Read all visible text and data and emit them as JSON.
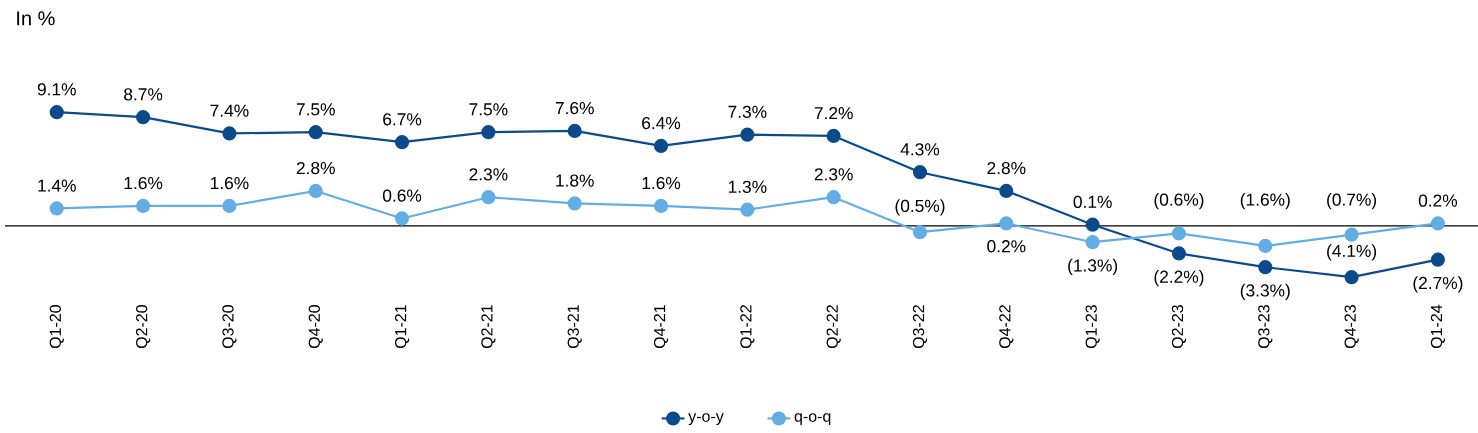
{
  "chart_data": {
    "type": "line",
    "title": "In %",
    "categories": [
      "Q1-20",
      "Q2-20",
      "Q3-20",
      "Q4-20",
      "Q1-21",
      "Q2-21",
      "Q3-21",
      "Q4-21",
      "Q1-22",
      "Q2-22",
      "Q3-22",
      "Q4-22",
      "Q1-23",
      "Q2-23",
      "Q3-23",
      "Q4-23",
      "Q1-24"
    ],
    "series": [
      {
        "name": "y-o-y",
        "color": "#0b4a8b",
        "values": [
          9.1,
          8.7,
          7.4,
          7.5,
          6.7,
          7.5,
          7.6,
          6.4,
          7.3,
          7.2,
          4.3,
          2.8,
          0.1,
          -2.2,
          -3.3,
          -4.1,
          -2.7
        ],
        "value_labels": [
          "9.1%",
          "8.7%",
          "7.4%",
          "7.5%",
          "6.7%",
          "7.5%",
          "7.6%",
          "6.4%",
          "7.3%",
          "7.2%",
          "4.3%",
          "2.8%",
          "0.1%",
          "(2.2%)",
          "(3.3%)",
          "(4.1%)",
          "(2.7%)"
        ]
      },
      {
        "name": "q-o-q",
        "color": "#62ade4",
        "values": [
          1.4,
          1.6,
          1.6,
          2.8,
          0.6,
          2.3,
          1.8,
          1.6,
          1.3,
          2.3,
          -0.5,
          0.2,
          -1.3,
          -0.6,
          -1.6,
          -0.7,
          0.2
        ],
        "value_labels": [
          "1.4%",
          "1.6%",
          "1.6%",
          "2.8%",
          "0.6%",
          "2.3%",
          "1.8%",
          "1.6%",
          "1.3%",
          "2.3%",
          "(0.5%)",
          "0.2%",
          "(1.3%)",
          "(0.6%)",
          "(1.6%)",
          "(0.7%)",
          "0.2%"
        ]
      }
    ],
    "ref_lines": [
      {
        "axis": "y",
        "value": 0,
        "color": "#000000"
      }
    ],
    "marker": "circle",
    "line_style": "solid",
    "grid": false,
    "legend": "bottom"
  }
}
